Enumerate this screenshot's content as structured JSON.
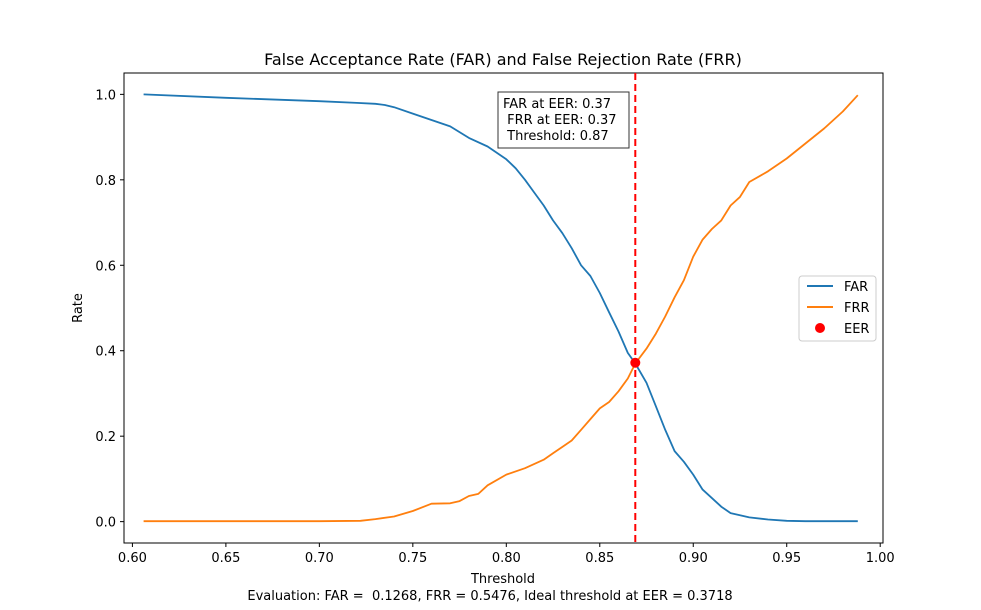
{
  "chart_data": {
    "type": "line",
    "title": "False Acceptance Rate (FAR) and False Rejection Rate (FRR)",
    "xlabel": "Threshold",
    "ylabel": "Rate",
    "xlim": [
      0.5955,
      1.0015
    ],
    "ylim": [
      -0.05,
      1.05
    ],
    "x_ticks": [
      0.6,
      0.65,
      0.7,
      0.75,
      0.8,
      0.85,
      0.9,
      0.95,
      1.0
    ],
    "x_tick_labels": [
      "0.60",
      "0.65",
      "0.70",
      "0.75",
      "0.80",
      "0.85",
      "0.90",
      "0.95",
      "1.00"
    ],
    "y_ticks": [
      0.0,
      0.2,
      0.4,
      0.6,
      0.8,
      1.0
    ],
    "y_tick_labels": [
      "0.0",
      "0.2",
      "0.4",
      "0.6",
      "0.8",
      "1.0"
    ],
    "series": [
      {
        "name": "FAR",
        "color": "#1f77b4",
        "x": [
          0.606,
          0.65,
          0.7,
          0.72,
          0.73,
          0.735,
          0.74,
          0.75,
          0.76,
          0.77,
          0.78,
          0.79,
          0.8,
          0.805,
          0.81,
          0.815,
          0.82,
          0.825,
          0.83,
          0.835,
          0.84,
          0.845,
          0.85,
          0.855,
          0.86,
          0.865,
          0.869,
          0.875,
          0.88,
          0.885,
          0.89,
          0.895,
          0.9,
          0.905,
          0.91,
          0.915,
          0.92,
          0.925,
          0.93,
          0.94,
          0.95,
          0.96,
          0.97,
          0.988
        ],
        "y": [
          1.0,
          0.992,
          0.984,
          0.98,
          0.978,
          0.975,
          0.97,
          0.955,
          0.94,
          0.925,
          0.898,
          0.878,
          0.848,
          0.827,
          0.8,
          0.77,
          0.74,
          0.705,
          0.675,
          0.64,
          0.6,
          0.575,
          0.535,
          0.49,
          0.445,
          0.395,
          0.37,
          0.325,
          0.27,
          0.215,
          0.165,
          0.14,
          0.11,
          0.075,
          0.055,
          0.035,
          0.02,
          0.015,
          0.01,
          0.005,
          0.002,
          0.001,
          0.001,
          0.001
        ]
      },
      {
        "name": "FRR",
        "color": "#ff7f0e",
        "x": [
          0.606,
          0.65,
          0.7,
          0.722,
          0.73,
          0.74,
          0.75,
          0.76,
          0.77,
          0.775,
          0.78,
          0.785,
          0.79,
          0.8,
          0.81,
          0.82,
          0.825,
          0.83,
          0.835,
          0.84,
          0.845,
          0.85,
          0.855,
          0.86,
          0.865,
          0.869,
          0.875,
          0.88,
          0.885,
          0.89,
          0.895,
          0.9,
          0.905,
          0.91,
          0.915,
          0.92,
          0.925,
          0.93,
          0.94,
          0.95,
          0.96,
          0.97,
          0.98,
          0.988
        ],
        "y": [
          0.001,
          0.001,
          0.001,
          0.002,
          0.006,
          0.012,
          0.025,
          0.042,
          0.043,
          0.048,
          0.06,
          0.065,
          0.085,
          0.11,
          0.125,
          0.145,
          0.16,
          0.175,
          0.19,
          0.215,
          0.24,
          0.265,
          0.28,
          0.305,
          0.335,
          0.37,
          0.405,
          0.44,
          0.48,
          0.525,
          0.565,
          0.62,
          0.66,
          0.685,
          0.705,
          0.74,
          0.76,
          0.795,
          0.82,
          0.85,
          0.885,
          0.92,
          0.96,
          0.998
        ]
      }
    ],
    "markers": [
      {
        "name": "EER",
        "x": 0.869,
        "y": 0.3718,
        "color": "#ff0000"
      }
    ],
    "vlines": [
      {
        "x": 0.869,
        "color": "#ff0000",
        "style": "dashed"
      }
    ],
    "legend": {
      "position": "center-right",
      "entries": [
        {
          "label": "FAR",
          "kind": "line",
          "color": "#1f77b4"
        },
        {
          "label": "FRR",
          "kind": "line",
          "color": "#ff7f0e"
        },
        {
          "label": "EER",
          "kind": "marker",
          "color": "#ff0000"
        }
      ]
    },
    "annotation": {
      "lines": [
        "FAR at EER: 0.37",
        " FRR at EER: 0.37",
        " Threshold: 0.87"
      ]
    },
    "caption": "Evaluation: FAR =  0.1268, FRR = 0.5476, Ideal threshold at EER = 0.3718"
  }
}
